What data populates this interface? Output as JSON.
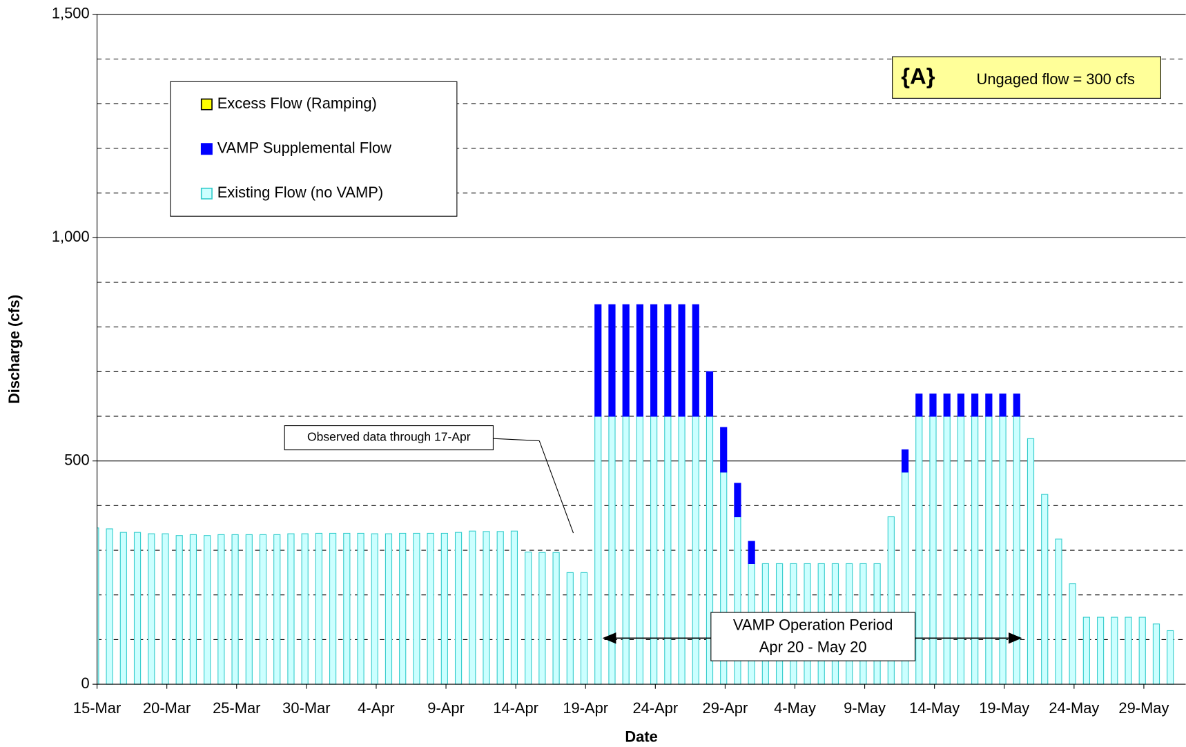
{
  "chart_data": {
    "type": "stacked_bar",
    "y_label": "Discharge (cfs)",
    "x_label": "Date",
    "categories": [
      "15-Mar",
      null,
      null,
      null,
      null,
      "20-Mar",
      null,
      null,
      null,
      null,
      "25-Mar",
      null,
      null,
      null,
      null,
      "30-Mar",
      null,
      null,
      null,
      null,
      "4-Apr",
      null,
      null,
      null,
      null,
      "9-Apr",
      null,
      null,
      null,
      null,
      "14-Apr",
      null,
      null,
      null,
      null,
      "19-Apr",
      null,
      null,
      null,
      null,
      "24-Apr",
      null,
      null,
      null,
      null,
      "29-Apr",
      null,
      null,
      null,
      null,
      "4-May",
      null,
      null,
      null,
      null,
      "9-May",
      null,
      null,
      null,
      null,
      "14-May",
      null,
      null,
      null,
      null,
      "19-May",
      null,
      null,
      null,
      null,
      "24-May",
      null,
      null,
      null,
      null,
      "29-May",
      null,
      null
    ],
    "series": [
      {
        "name": "Existing Flow (no VAMP)",
        "color": "#ccffff",
        "stroke": "#33cccc",
        "values": [
          350,
          348,
          340,
          340,
          337,
          337,
          333,
          335,
          333,
          335,
          335,
          335,
          335,
          335,
          337,
          337,
          338,
          338,
          338,
          338,
          337,
          337,
          338,
          338,
          338,
          338,
          340,
          343,
          342,
          342,
          343,
          296,
          295,
          295,
          250,
          250,
          600,
          600,
          600,
          600,
          600,
          600,
          600,
          600,
          600,
          475,
          375,
          270,
          270,
          270,
          270,
          270,
          270,
          270,
          270,
          270,
          270,
          375,
          475,
          600,
          600,
          600,
          600,
          600,
          600,
          600,
          600,
          550,
          425,
          325,
          225,
          150,
          150,
          150,
          150,
          150,
          135,
          120
        ]
      },
      {
        "name": "VAMP Supplemental Flow",
        "color": "#0000ff",
        "stroke": "#0000ff",
        "values": [
          0,
          0,
          0,
          0,
          0,
          0,
          0,
          0,
          0,
          0,
          0,
          0,
          0,
          0,
          0,
          0,
          0,
          0,
          0,
          0,
          0,
          0,
          0,
          0,
          0,
          0,
          0,
          0,
          0,
          0,
          0,
          0,
          0,
          0,
          0,
          0,
          250,
          250,
          250,
          250,
          250,
          250,
          250,
          250,
          100,
          100,
          75,
          50,
          0,
          0,
          0,
          0,
          0,
          0,
          0,
          0,
          0,
          0,
          50,
          50,
          50,
          50,
          50,
          50,
          50,
          50,
          50,
          0,
          0,
          0,
          0,
          0,
          0,
          0,
          0,
          0,
          0,
          0
        ]
      },
      {
        "name": "Excess Flow (Ramping)",
        "color": "#ffff00",
        "stroke": "#000000",
        "values": [
          0,
          0,
          0,
          0,
          0,
          0,
          0,
          0,
          0,
          0,
          0,
          0,
          0,
          0,
          0,
          0,
          0,
          0,
          0,
          0,
          0,
          0,
          0,
          0,
          0,
          0,
          0,
          0,
          0,
          0,
          0,
          0,
          0,
          0,
          0,
          0,
          0,
          0,
          0,
          0,
          0,
          0,
          0,
          0,
          0,
          0,
          0,
          0,
          0,
          0,
          0,
          0,
          0,
          0,
          0,
          0,
          0,
          0,
          0,
          0,
          0,
          0,
          0,
          0,
          0,
          0,
          0,
          0,
          0,
          0,
          0,
          0,
          0,
          0,
          0,
          0,
          0,
          0
        ]
      }
    ],
    "ylim": [
      0,
      1500
    ],
    "yticks": [
      0,
      500,
      {
        "value": 1000,
        "label": "1,000"
      },
      {
        "value": 1500,
        "label": "1,500"
      }
    ],
    "minor_yticks": [
      100,
      200,
      300,
      400,
      600,
      700,
      800,
      900,
      1100,
      1200,
      1300,
      1400
    ],
    "annotations": {
      "observed": "Observed data through 17-Apr",
      "ungaged_tag": "{A}",
      "ungaged": "Ungaged flow  = 300 cfs",
      "period_line1": "VAMP Operation Period",
      "period_line2": "Apr 20 - May 20"
    }
  }
}
